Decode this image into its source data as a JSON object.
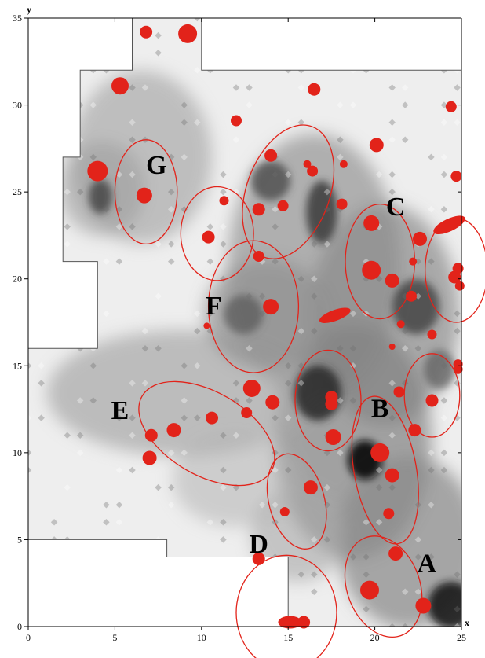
{
  "chart_data": {
    "type": "scatter",
    "title": "",
    "xlabel": "x",
    "ylabel": "y",
    "xlim": [
      0,
      25
    ],
    "ylim": [
      0,
      35
    ],
    "x_ticks": [
      0,
      5,
      10,
      15,
      20,
      25
    ],
    "y_ticks": [
      0,
      5,
      10,
      15,
      20,
      25,
      30,
      35
    ],
    "background": "grayscale contour density map",
    "colors": {
      "points": "#e2231a",
      "ellipses": "#e2231a",
      "outline": "#555555"
    },
    "survey_boundary": [
      [
        0,
        0
      ],
      [
        25,
        0
      ],
      [
        25,
        32
      ],
      [
        10,
        32
      ],
      [
        10,
        35
      ],
      [
        6,
        35
      ],
      [
        6,
        32
      ],
      [
        3,
        32
      ],
      [
        3,
        27
      ],
      [
        2,
        27
      ],
      [
        2,
        21
      ],
      [
        4,
        21
      ],
      [
        4,
        16
      ],
      [
        0,
        16
      ],
      [
        0,
        5
      ],
      [
        8,
        5
      ],
      [
        8,
        4
      ],
      [
        15,
        4
      ],
      [
        15,
        0
      ]
    ],
    "regions": [
      {
        "label": "A",
        "label_at": [
          23.0,
          3.5
        ],
        "cx": 20.5,
        "cy": 2.3,
        "rx": 2.1,
        "ry": 3.0,
        "angle": 20
      },
      {
        "label": "B",
        "label_at": [
          20.3,
          12.4
        ],
        "cx": 17.3,
        "cy": 13.0,
        "rx": 1.9,
        "ry": 2.9,
        "angle": 0
      },
      {
        "label": "",
        "label_at": null,
        "cx": 20.6,
        "cy": 9.0,
        "rx": 1.8,
        "ry": 4.3,
        "angle": 10
      },
      {
        "label": "",
        "label_at": null,
        "cx": 23.3,
        "cy": 13.3,
        "rx": 1.6,
        "ry": 2.4,
        "angle": 0
      },
      {
        "label": "C",
        "label_at": [
          21.2,
          24.0
        ],
        "cx": 20.3,
        "cy": 21.0,
        "rx": 2.0,
        "ry": 3.3,
        "angle": 0
      },
      {
        "label": "",
        "label_at": null,
        "cx": 24.7,
        "cy": 20.5,
        "rx": 1.8,
        "ry": 3.0,
        "angle": 0
      },
      {
        "label": "D",
        "label_at": [
          13.3,
          4.6
        ],
        "cx": 15.5,
        "cy": 7.2,
        "rx": 1.6,
        "ry": 2.8,
        "angle": 15
      },
      {
        "label": "",
        "label_at": null,
        "cx": 14.9,
        "cy": 0.8,
        "rx": 2.9,
        "ry": 3.3,
        "angle": 0
      },
      {
        "label": "E",
        "label_at": [
          5.3,
          12.3
        ],
        "cx": 10.3,
        "cy": 11.1,
        "rx": 2.4,
        "ry": 4.3,
        "angle": 60
      },
      {
        "label": "F",
        "label_at": [
          10.7,
          18.3
        ],
        "cx": 13.0,
        "cy": 18.4,
        "rx": 2.6,
        "ry": 3.8,
        "angle": 0
      },
      {
        "label": "",
        "label_at": null,
        "cx": 10.9,
        "cy": 22.6,
        "rx": 2.1,
        "ry": 2.7,
        "angle": 0
      },
      {
        "label": "",
        "label_at": null,
        "cx": 15.0,
        "cy": 25.0,
        "rx": 2.4,
        "ry": 4.0,
        "angle": -20
      },
      {
        "label": "G",
        "label_at": [
          7.4,
          26.4
        ],
        "cx": 6.8,
        "cy": 25.0,
        "rx": 1.8,
        "ry": 3.0,
        "angle": 0
      }
    ],
    "points": [
      {
        "x": 6.8,
        "y": 34.2,
        "s": 8
      },
      {
        "x": 9.2,
        "y": 34.1,
        "s": 12
      },
      {
        "x": 5.3,
        "y": 31.1,
        "s": 11
      },
      {
        "x": 16.5,
        "y": 30.9,
        "s": 8
      },
      {
        "x": 12.0,
        "y": 29.1,
        "s": 7
      },
      {
        "x": 24.4,
        "y": 29.9,
        "s": 7
      },
      {
        "x": 4.0,
        "y": 26.2,
        "s": 13
      },
      {
        "x": 6.7,
        "y": 24.8,
        "s": 10
      },
      {
        "x": 20.1,
        "y": 27.7,
        "s": 9
      },
      {
        "x": 14.0,
        "y": 27.1,
        "s": 8
      },
      {
        "x": 16.1,
        "y": 26.6,
        "s": 5
      },
      {
        "x": 16.4,
        "y": 26.2,
        "s": 7
      },
      {
        "x": 18.2,
        "y": 26.6,
        "s": 5
      },
      {
        "x": 24.7,
        "y": 25.9,
        "s": 7
      },
      {
        "x": 11.3,
        "y": 24.5,
        "s": 6
      },
      {
        "x": 13.3,
        "y": 24.0,
        "s": 8
      },
      {
        "x": 14.7,
        "y": 24.2,
        "s": 7
      },
      {
        "x": 18.1,
        "y": 24.3,
        "s": 7
      },
      {
        "x": 10.4,
        "y": 22.4,
        "s": 8
      },
      {
        "x": 19.8,
        "y": 23.2,
        "s": 10
      },
      {
        "x": 22.6,
        "y": 22.3,
        "s": 9
      },
      {
        "x": 24.3,
        "y": 23.1,
        "s": 13,
        "rx": 22,
        "ry": 8,
        "angle": -25
      },
      {
        "x": 13.3,
        "y": 21.3,
        "s": 7
      },
      {
        "x": 22.2,
        "y": 21.0,
        "s": 5
      },
      {
        "x": 19.8,
        "y": 20.5,
        "s": 12
      },
      {
        "x": 21.0,
        "y": 19.9,
        "s": 9
      },
      {
        "x": 24.8,
        "y": 20.6,
        "s": 7
      },
      {
        "x": 24.6,
        "y": 20.1,
        "s": 8
      },
      {
        "x": 24.9,
        "y": 19.6,
        "s": 6
      },
      {
        "x": 22.1,
        "y": 19.0,
        "s": 7
      },
      {
        "x": 14.0,
        "y": 18.4,
        "s": 10
      },
      {
        "x": 17.7,
        "y": 17.9,
        "s": 9,
        "rx": 21,
        "ry": 7,
        "angle": -20
      },
      {
        "x": 10.3,
        "y": 17.3,
        "s": 4
      },
      {
        "x": 21.5,
        "y": 17.4,
        "s": 5
      },
      {
        "x": 23.3,
        "y": 16.8,
        "s": 6
      },
      {
        "x": 21.0,
        "y": 16.1,
        "s": 4
      },
      {
        "x": 24.8,
        "y": 15.1,
        "s": 6
      },
      {
        "x": 24.8,
        "y": 14.8,
        "s": 6
      },
      {
        "x": 12.9,
        "y": 13.7,
        "s": 11
      },
      {
        "x": 17.5,
        "y": 13.2,
        "s": 8
      },
      {
        "x": 17.5,
        "y": 12.8,
        "s": 8
      },
      {
        "x": 14.1,
        "y": 12.9,
        "s": 9
      },
      {
        "x": 21.4,
        "y": 13.5,
        "s": 7
      },
      {
        "x": 23.3,
        "y": 13.0,
        "s": 8
      },
      {
        "x": 12.6,
        "y": 12.3,
        "s": 7
      },
      {
        "x": 10.6,
        "y": 12.0,
        "s": 8
      },
      {
        "x": 8.4,
        "y": 11.3,
        "s": 9
      },
      {
        "x": 7.1,
        "y": 11.0,
        "s": 8
      },
      {
        "x": 7.0,
        "y": 9.7,
        "s": 9
      },
      {
        "x": 17.6,
        "y": 10.9,
        "s": 10
      },
      {
        "x": 22.3,
        "y": 11.3,
        "s": 8
      },
      {
        "x": 20.3,
        "y": 10.0,
        "s": 12
      },
      {
        "x": 21.0,
        "y": 8.7,
        "s": 9
      },
      {
        "x": 16.3,
        "y": 8.0,
        "s": 9
      },
      {
        "x": 20.8,
        "y": 6.5,
        "s": 7
      },
      {
        "x": 14.8,
        "y": 6.6,
        "s": 6
      },
      {
        "x": 21.2,
        "y": 4.2,
        "s": 9
      },
      {
        "x": 13.3,
        "y": 3.9,
        "s": 8
      },
      {
        "x": 19.7,
        "y": 2.1,
        "s": 12
      },
      {
        "x": 22.8,
        "y": 1.2,
        "s": 10
      },
      {
        "x": 15.1,
        "y": 0.25,
        "s": 9,
        "rx": 15,
        "ry": 8,
        "angle": 0
      },
      {
        "x": 15.9,
        "y": 0.25,
        "s": 8
      }
    ]
  }
}
